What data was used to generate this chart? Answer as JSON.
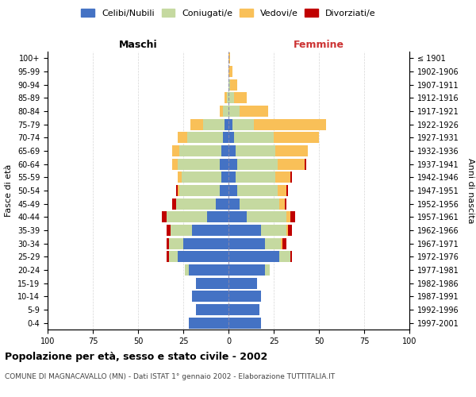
{
  "age_groups": [
    "0-4",
    "5-9",
    "10-14",
    "15-19",
    "20-24",
    "25-29",
    "30-34",
    "35-39",
    "40-44",
    "45-49",
    "50-54",
    "55-59",
    "60-64",
    "65-69",
    "70-74",
    "75-79",
    "80-84",
    "85-89",
    "90-94",
    "95-99",
    "100+"
  ],
  "birth_years": [
    "1997-2001",
    "1992-1996",
    "1987-1991",
    "1982-1986",
    "1977-1981",
    "1972-1976",
    "1967-1971",
    "1962-1966",
    "1957-1961",
    "1952-1956",
    "1947-1951",
    "1942-1946",
    "1937-1941",
    "1932-1936",
    "1927-1931",
    "1922-1926",
    "1917-1921",
    "1912-1916",
    "1907-1911",
    "1902-1906",
    "≤ 1901"
  ],
  "maschi_celibi": [
    22,
    18,
    20,
    18,
    22,
    28,
    25,
    20,
    12,
    7,
    5,
    4,
    5,
    4,
    3,
    2,
    0,
    0,
    0,
    0,
    0
  ],
  "maschi_coniugati": [
    0,
    0,
    0,
    0,
    2,
    5,
    8,
    12,
    22,
    22,
    22,
    22,
    23,
    23,
    20,
    12,
    3,
    1,
    0,
    0,
    0
  ],
  "maschi_vedovi": [
    0,
    0,
    0,
    0,
    0,
    0,
    0,
    0,
    0,
    0,
    1,
    2,
    3,
    4,
    5,
    7,
    2,
    1,
    0,
    0,
    0
  ],
  "maschi_divorziati": [
    0,
    0,
    0,
    0,
    0,
    1,
    1,
    2,
    3,
    2,
    1,
    0,
    0,
    0,
    0,
    0,
    0,
    0,
    0,
    0,
    0
  ],
  "femmine_celibi": [
    18,
    17,
    18,
    16,
    20,
    28,
    20,
    18,
    10,
    6,
    5,
    4,
    5,
    4,
    3,
    2,
    0,
    0,
    0,
    0,
    0
  ],
  "femmine_coniugati": [
    0,
    0,
    0,
    0,
    3,
    6,
    9,
    14,
    22,
    22,
    22,
    22,
    22,
    22,
    22,
    12,
    6,
    3,
    1,
    0,
    0
  ],
  "femmine_vedovi": [
    0,
    0,
    0,
    0,
    0,
    0,
    1,
    1,
    2,
    3,
    5,
    8,
    15,
    18,
    25,
    40,
    16,
    7,
    4,
    2,
    1
  ],
  "femmine_divorziati": [
    0,
    0,
    0,
    0,
    0,
    1,
    2,
    2,
    3,
    1,
    1,
    1,
    1,
    0,
    0,
    0,
    0,
    0,
    0,
    0,
    0
  ],
  "colors": {
    "celibi": "#4472C4",
    "coniugati": "#C5D9A0",
    "vedovi": "#F9C058",
    "divorziati": "#C00000"
  },
  "legend_labels": [
    "Celibi/Nubili",
    "Coniugati/e",
    "Vedovi/e",
    "Divorziati/e"
  ],
  "title_main": "Popolazione per età, sesso e stato civile - 2002",
  "title_sub": "COMUNE DI MAGNACAVALLO (MN) - Dati ISTAT 1° gennaio 2002 - Elaborazione TUTTITALIA.IT",
  "xlabel_left": "Maschi",
  "xlabel_right": "Femmine",
  "ylabel_left": "Fasce di età",
  "ylabel_right": "Anni di nascita",
  "xlim": 100,
  "bg_color": "#ffffff",
  "grid_color": "#cccccc"
}
